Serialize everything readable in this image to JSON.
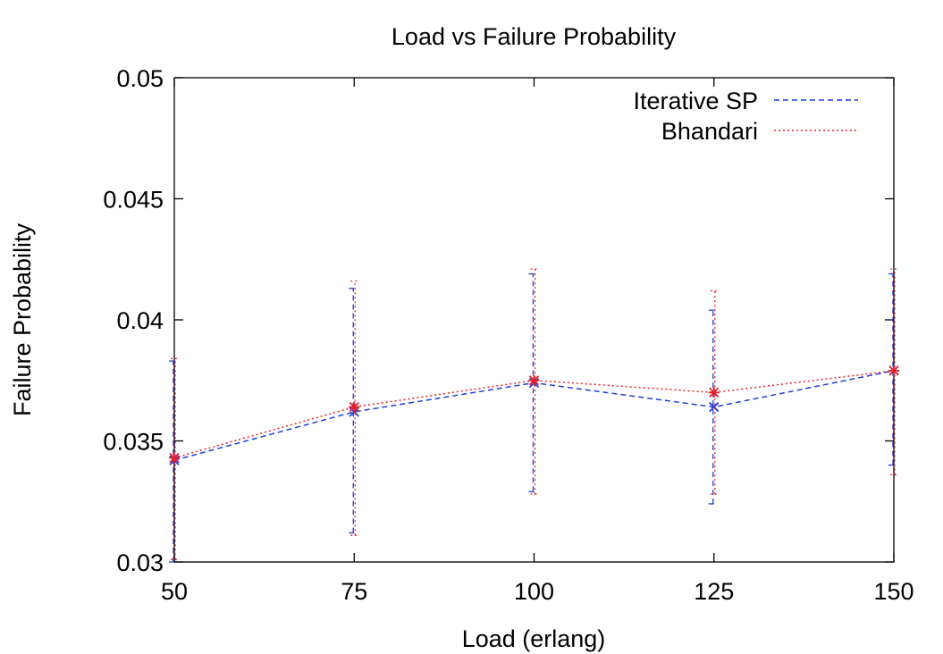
{
  "chart_data": {
    "type": "line",
    "title": "Load vs Failure Probability",
    "xlabel": "Load (erlang)",
    "ylabel": "Failure Probability",
    "xlim": [
      50,
      150
    ],
    "ylim": [
      0.03,
      0.05
    ],
    "xticks": [
      "50",
      "75",
      "100",
      "125",
      "150"
    ],
    "xtick_values": [
      50,
      75,
      100,
      125,
      150
    ],
    "yticks": [
      "0.03",
      "0.035",
      "0.04",
      "0.045",
      "0.05"
    ],
    "ytick_values": [
      0.03,
      0.035,
      0.04,
      0.045,
      0.05
    ],
    "grid": false,
    "legend_position": "top-right",
    "x": [
      50,
      75,
      100,
      125,
      150
    ],
    "series": [
      {
        "name": "Iterative SP",
        "color": "#1f3fd6",
        "line_style": "dashed",
        "marker": "x",
        "values": [
          0.0342,
          0.0362,
          0.0374,
          0.0364,
          0.0379
        ],
        "error_low": [
          0.03,
          0.0312,
          0.0329,
          0.0324,
          0.034
        ],
        "error_high": [
          0.0383,
          0.0413,
          0.0419,
          0.0404,
          0.0419
        ]
      },
      {
        "name": "Bhandari",
        "color": "#e8202a",
        "line_style": "dotted",
        "marker": "star",
        "values": [
          0.0343,
          0.0364,
          0.0375,
          0.037,
          0.0379
        ],
        "error_low": [
          0.0301,
          0.0311,
          0.0328,
          0.0328,
          0.0336
        ],
        "error_high": [
          0.0384,
          0.0416,
          0.0421,
          0.0412,
          0.0421
        ]
      }
    ]
  }
}
